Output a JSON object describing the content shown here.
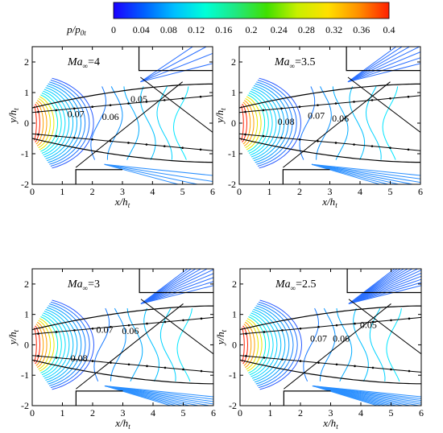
{
  "colorbar": {
    "label": "p/p",
    "label_sub": "0t",
    "ticks": [
      "0",
      "0.04",
      "0.08",
      "0.12",
      "0.16",
      "0.2",
      "0.24",
      "0.28",
      "0.32",
      "0.36",
      "0.4"
    ],
    "range": [
      0,
      0.4
    ],
    "colors": [
      "#1a00ff",
      "#0060ff",
      "#00c0ff",
      "#00ffd8",
      "#20e880",
      "#40e000",
      "#c8ef00",
      "#ffe000",
      "#ff9000",
      "#ff2000"
    ]
  },
  "chart_data": [
    {
      "type": "contour",
      "id": "ma4",
      "label_main": "Ma",
      "label_sub": "∞",
      "label_value": "=4",
      "xlabel": "x/h",
      "xlabel_sub": "t",
      "ylabel": "y/h",
      "ylabel_sub": "t",
      "xlim": [
        0,
        6
      ],
      "ylim": [
        -2,
        2.5
      ],
      "xticks": [
        "0",
        "1",
        "2",
        "3",
        "4",
        "5",
        "6"
      ],
      "yticks": [
        "-2",
        "-1",
        "0",
        "1",
        "2"
      ],
      "contour_labels": [
        {
          "text": "0.05",
          "x": 3.55,
          "y": 0.68
        },
        {
          "text": "0.07",
          "x": 1.45,
          "y": 0.2
        },
        {
          "text": "0.06",
          "x": 2.6,
          "y": 0.1
        }
      ]
    },
    {
      "type": "contour",
      "id": "ma35",
      "label_main": "Ma",
      "label_sub": "∞",
      "label_value": "=3.5",
      "xlabel": "x/h",
      "xlabel_sub": "t",
      "ylabel": "y/h",
      "ylabel_sub": "t",
      "xlim": [
        0,
        6
      ],
      "ylim": [
        -2,
        2.5
      ],
      "xticks": [
        "0",
        "1",
        "2",
        "3",
        "4",
        "5",
        "6"
      ],
      "yticks": [
        "-2",
        "-1",
        "0",
        "1",
        "2"
      ],
      "contour_labels": [
        {
          "text": "0.08",
          "x": 1.55,
          "y": -0.05
        },
        {
          "text": "0.07",
          "x": 2.55,
          "y": 0.15
        },
        {
          "text": "0.06",
          "x": 3.35,
          "y": 0.05
        }
      ]
    },
    {
      "type": "contour",
      "id": "ma3",
      "label_main": "Ma",
      "label_sub": "∞",
      "label_value": "=3",
      "xlabel": "x/h",
      "xlabel_sub": "t",
      "ylabel": "y/h",
      "ylabel_sub": "t",
      "xlim": [
        0,
        6
      ],
      "ylim": [
        -2,
        2.5
      ],
      "xticks": [
        "0",
        "1",
        "2",
        "3",
        "4",
        "5",
        "6"
      ],
      "yticks": [
        "-2",
        "-1",
        "0",
        "1",
        "2"
      ],
      "contour_labels": [
        {
          "text": "0.07",
          "x": 2.4,
          "y": 0.4
        },
        {
          "text": "0.06",
          "x": 3.25,
          "y": 0.35
        },
        {
          "text": "0.08",
          "x": 1.55,
          "y": -0.55
        }
      ]
    },
    {
      "type": "contour",
      "id": "ma25",
      "label_main": "Ma",
      "label_sub": "∞",
      "label_value": "=2.5",
      "xlabel": "x/h",
      "xlabel_sub": "t",
      "ylabel": "y/h",
      "ylabel_sub": "t",
      "xlim": [
        0,
        6
      ],
      "ylim": [
        -2,
        2.5
      ],
      "xticks": [
        "0",
        "1",
        "2",
        "3",
        "4",
        "5",
        "6"
      ],
      "yticks": [
        "-2",
        "-1",
        "0",
        "1",
        "2"
      ],
      "contour_labels": [
        {
          "text": "0.07",
          "x": 2.6,
          "y": 0.1
        },
        {
          "text": "0.06",
          "x": 3.35,
          "y": 0.1
        },
        {
          "text": "0.05",
          "x": 4.25,
          "y": 0.55
        }
      ]
    }
  ]
}
